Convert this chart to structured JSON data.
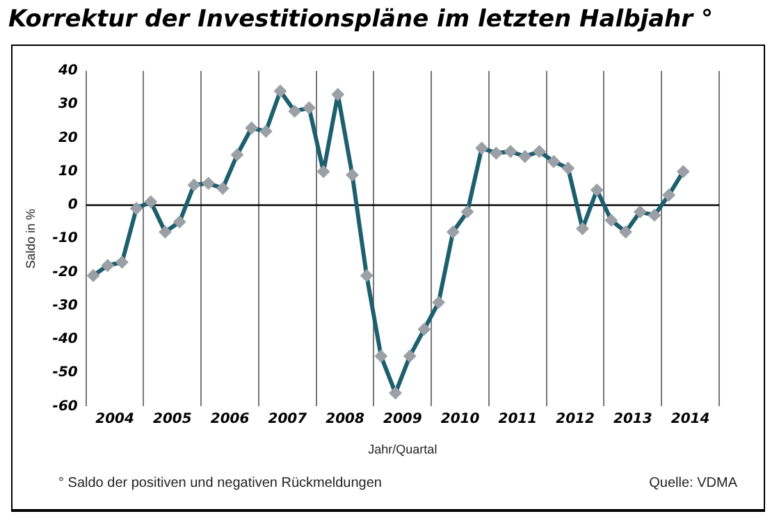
{
  "chart_data": {
    "type": "line",
    "title": "Korrektur der Investitionspläne im letzten Halbjahr °",
    "xlabel": "Jahr/Quartal",
    "ylabel": "Saldo in %",
    "annotations": [
      "° Saldo der positiven und negativen Rückmeldungen",
      "Quelle: VDMA"
    ],
    "x": [
      2004.125,
      2004.375,
      2004.625,
      2004.875,
      2005.125,
      2005.375,
      2005.625,
      2005.875,
      2006.125,
      2006.375,
      2006.625,
      2006.875,
      2007.125,
      2007.375,
      2007.625,
      2007.875,
      2008.125,
      2008.375,
      2008.625,
      2008.875,
      2009.125,
      2009.375,
      2009.625,
      2009.875,
      2010.125,
      2010.375,
      2010.625,
      2010.875,
      2011.125,
      2011.375,
      2011.625,
      2011.875,
      2012.125,
      2012.375,
      2012.625,
      2012.875,
      2013.125,
      2013.375,
      2013.625,
      2013.875,
      2014.125,
      2014.375
    ],
    "series": [
      {
        "color": "#1e5f6e",
        "values": [
          -21,
          -18,
          -17,
          -1,
          1,
          -8,
          -5,
          6,
          6.5,
          5,
          15,
          23,
          22,
          34,
          28,
          29,
          10,
          33,
          9,
          -21,
          -45,
          -56,
          -45,
          -37,
          -29,
          -8,
          -2,
          17,
          15.5,
          16,
          14.5,
          16,
          13,
          11,
          -7,
          4.5,
          -4.5,
          -8,
          -2,
          -3,
          3,
          10
        ]
      }
    ],
    "xlim": [
      2004,
      2015
    ],
    "xticks": [
      {
        "value": 2004,
        "label": null
      },
      {
        "value": 2004.5,
        "label": "2004"
      },
      {
        "value": 2005,
        "label": null
      },
      {
        "value": 2005.5,
        "label": "2005"
      },
      {
        "value": 2006,
        "label": null
      },
      {
        "value": 2006.5,
        "label": "2006"
      },
      {
        "value": 2007,
        "label": null
      },
      {
        "value": 2007.5,
        "label": "2007"
      },
      {
        "value": 2008,
        "label": null
      },
      {
        "value": 2008.5,
        "label": "2008"
      },
      {
        "value": 2009,
        "label": null
      },
      {
        "value": 2009.5,
        "label": "2009"
      },
      {
        "value": 2010,
        "label": null
      },
      {
        "value": 2010.5,
        "label": "2010"
      },
      {
        "value": 2011,
        "label": null
      },
      {
        "value": 2011.5,
        "label": "2011"
      },
      {
        "value": 2012,
        "label": null
      },
      {
        "value": 2012.5,
        "label": "2012"
      },
      {
        "value": 2013,
        "label": null
      },
      {
        "value": 2013.5,
        "label": "2013"
      },
      {
        "value": 2014,
        "label": null
      },
      {
        "value": 2014.5,
        "label": "2014"
      },
      {
        "value": 2015,
        "label": null
      }
    ],
    "ylim": [
      -60,
      40
    ],
    "yticks": [
      -60,
      -50,
      -40,
      -30,
      -20,
      -10,
      0,
      10,
      20,
      30,
      40
    ],
    "ref_lines": [
      {
        "axis": "y",
        "value": 0,
        "color": "#000000"
      }
    ],
    "grid": "x",
    "legend": false,
    "marker": "diamond",
    "line_style": "solid"
  }
}
